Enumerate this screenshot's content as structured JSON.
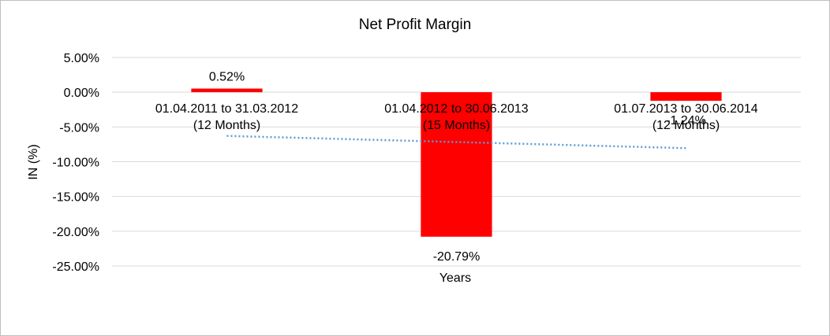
{
  "chart_data": {
    "type": "bar",
    "title": "Net Profit Margin",
    "xlabel": "Years",
    "ylabel": "IN (%)",
    "categories": [
      [
        "01.04.2011 to 31.03.2012",
        "(12 Months)"
      ],
      [
        "01.04.2012 to 30.06.2013",
        "(15 Months)"
      ],
      [
        "01.07.2013 to 30.06.2014",
        "(12 Months)"
      ]
    ],
    "values": [
      0.52,
      -20.79,
      -1.24
    ],
    "data_labels": [
      "0.52%",
      "-20.79%",
      "-1.24%"
    ],
    "ylim": [
      -25,
      5
    ],
    "yticks": [
      5,
      0,
      -5,
      -10,
      -15,
      -20,
      -25
    ],
    "ytick_labels": [
      "5.00%",
      "0.00%",
      "-5.00%",
      "-10.00%",
      "-15.00%",
      "-20.00%",
      "-25.00%"
    ],
    "trendline": {
      "type": "linear",
      "style": "dotted",
      "color": "#5b9bd5"
    },
    "grid": true,
    "legend": "none",
    "bar_color": "#ff0000",
    "gridline_color": "#d9d9d9"
  }
}
